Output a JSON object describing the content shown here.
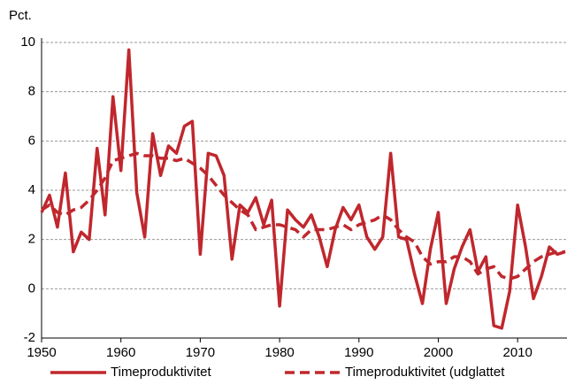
{
  "chart_data": {
    "type": "line",
    "y_axis_label": "Pct.",
    "x": [
      1950,
      1951,
      1952,
      1953,
      1954,
      1955,
      1956,
      1957,
      1958,
      1959,
      1960,
      1961,
      1962,
      1963,
      1964,
      1965,
      1966,
      1967,
      1968,
      1969,
      1970,
      1971,
      1972,
      1973,
      1974,
      1975,
      1976,
      1977,
      1978,
      1979,
      1980,
      1981,
      1982,
      1983,
      1984,
      1985,
      1986,
      1987,
      1988,
      1989,
      1990,
      1991,
      1992,
      1993,
      1994,
      1995,
      1996,
      1997,
      1998,
      1999,
      2000,
      2001,
      2002,
      2003,
      2004,
      2005,
      2006,
      2007,
      2008,
      2009,
      2010,
      2011,
      2012,
      2013,
      2014,
      2015,
      2016
    ],
    "series": [
      {
        "name": "Timeproduktivitet",
        "color": "#c0272d",
        "dash": false,
        "values": [
          3.1,
          3.8,
          2.5,
          4.7,
          1.5,
          2.3,
          2.0,
          5.7,
          3.0,
          7.8,
          4.8,
          9.7,
          3.9,
          2.1,
          6.3,
          4.6,
          5.8,
          5.5,
          6.6,
          6.8,
          1.4,
          5.5,
          5.4,
          4.6,
          1.2,
          3.4,
          3.1,
          3.7,
          2.6,
          3.6,
          -0.7,
          3.2,
          2.8,
          2.5,
          3.0,
          2.1,
          0.9,
          2.4,
          3.3,
          2.8,
          3.4,
          2.1,
          1.6,
          2.1,
          5.5,
          2.1,
          2.0,
          0.6,
          -0.6,
          1.6,
          3.1,
          -0.6,
          0.8,
          1.7,
          2.4,
          0.7,
          1.3,
          -1.5,
          -1.6,
          -0.1,
          3.4,
          1.7,
          -0.4,
          0.5,
          1.7,
          1.4,
          1.5
        ]
      },
      {
        "name": "Timeproduktivitet (udglattet",
        "color": "#c0272d",
        "dash": true,
        "values": [
          3.2,
          3.4,
          3.1,
          3.0,
          3.2,
          3.3,
          3.6,
          4.0,
          4.5,
          5.2,
          5.3,
          5.4,
          5.5,
          5.4,
          5.4,
          5.3,
          5.3,
          5.2,
          5.3,
          5.1,
          4.9,
          4.6,
          4.2,
          3.8,
          3.5,
          3.2,
          3.0,
          2.4,
          2.5,
          2.6,
          2.6,
          2.5,
          2.4,
          2.1,
          2.4,
          2.4,
          2.4,
          2.5,
          2.6,
          2.4,
          2.6,
          2.7,
          2.8,
          3.0,
          2.8,
          2.4,
          2.1,
          1.9,
          1.3,
          1.0,
          1.1,
          1.1,
          1.3,
          1.3,
          1.1,
          0.6,
          0.8,
          0.9,
          0.5,
          0.4,
          0.5,
          0.8,
          1.1,
          1.3,
          1.4,
          1.5,
          1.5
        ]
      }
    ],
    "xlim": [
      1950,
      2016
    ],
    "xticks": [
      1950,
      1960,
      1970,
      1980,
      1990,
      2000,
      2010
    ],
    "ylim": [
      -2,
      10
    ],
    "yticks": [
      -2,
      0,
      2,
      4,
      6,
      8,
      10
    ],
    "grid": true
  }
}
